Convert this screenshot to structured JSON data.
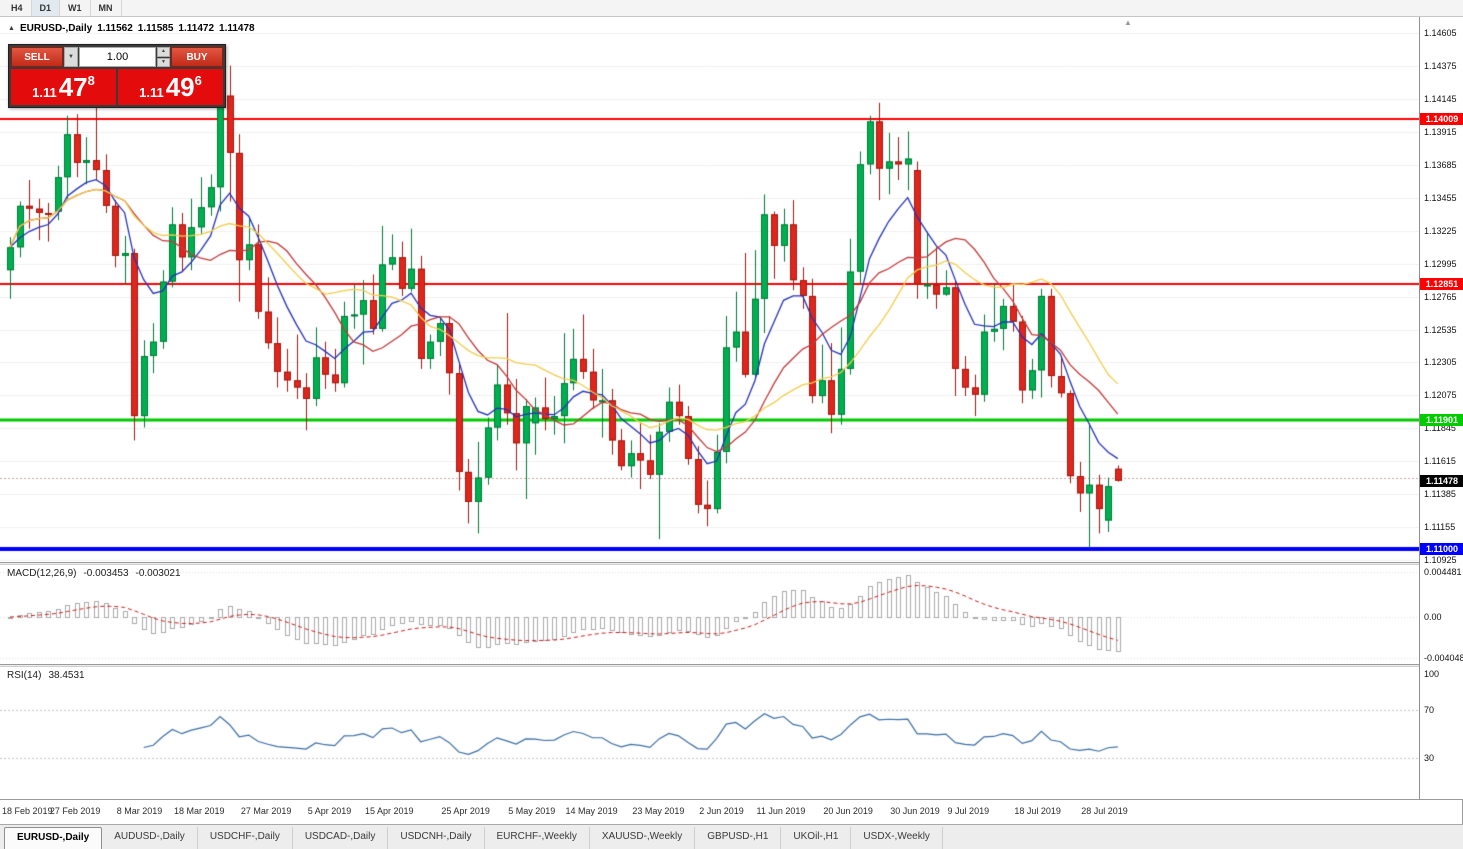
{
  "toolbar": {
    "timeframes": [
      "H4",
      "D1",
      "W1",
      "MN"
    ],
    "active_timeframe": "D1"
  },
  "chart_header": {
    "title": "EURUSD-,Daily",
    "open": "1.11562",
    "high": "1.11585",
    "low": "1.11472",
    "close": "1.11478"
  },
  "icons": {
    "collapse": "▲",
    "dropdown": "▼",
    "spin_up": "▲",
    "spin_down": "▼",
    "chart_shift": "▲"
  },
  "trade_panel": {
    "sell_label": "SELL",
    "buy_label": "BUY",
    "volume": "1.00",
    "sell_price": {
      "prefix": "1.11",
      "big": "47",
      "sup": "8"
    },
    "buy_price": {
      "prefix": "1.11",
      "big": "49",
      "sup": "6"
    }
  },
  "chart_data": {
    "type": "candlestick",
    "symbol": "EURUSD-",
    "timeframe": "Daily",
    "y_range": [
      1.1091,
      1.1472
    ],
    "y_ticks": [
      "1.14605",
      "1.14375",
      "1.14145",
      "1.13915",
      "1.13685",
      "1.13455",
      "1.13225",
      "1.12995",
      "1.12765",
      "1.12535",
      "1.12305",
      "1.12075",
      "1.11845",
      "1.11615",
      "1.11385",
      "1.11155",
      "1.10925"
    ],
    "hlines": [
      {
        "price": 1.14009,
        "label": "1.14009",
        "color": "#FF0000",
        "width": 2
      },
      {
        "price": 1.12851,
        "label": "1.12851",
        "color": "#FF0000",
        "width": 2
      },
      {
        "price": 1.11901,
        "label": "1.11901",
        "color": "#00CC00",
        "width": 3
      },
      {
        "price": 1.11,
        "label": "1.11000",
        "color": "#0000FF",
        "width": 4
      }
    ],
    "ask_line": 1.11496,
    "current_price": {
      "price": 1.11478,
      "label": "1.11478",
      "bg": "#000000"
    },
    "colors": {
      "bull": "#00B050",
      "bear": "#E0261C",
      "bull_border": "#007A38",
      "bear_border": "#9E1A12",
      "grid": "#F1F1F1"
    },
    "moving_averages": [
      {
        "name": "fast-ma",
        "type": "ema",
        "period": 8,
        "color": "#2433B9"
      },
      {
        "name": "medium-ma",
        "type": "sma",
        "period": 13,
        "color": "#C23B3B"
      },
      {
        "name": "slow-ma",
        "type": "sma",
        "period": 21,
        "color": "#F2CE4E"
      }
    ],
    "x_labels": [
      {
        "text": "18 Feb 2019",
        "index": 0
      },
      {
        "text": "27 Feb 2019",
        "index": 7
      },
      {
        "text": "8 Mar 2019",
        "index": 14
      },
      {
        "text": "18 Mar 2019",
        "index": 20
      },
      {
        "text": "27 Mar 2019",
        "index": 27
      },
      {
        "text": "5 Apr 2019",
        "index": 34
      },
      {
        "text": "15 Apr 2019",
        "index": 40
      },
      {
        "text": "25 Apr 2019",
        "index": 48
      },
      {
        "text": "5 May 2019",
        "index": 55
      },
      {
        "text": "14 May 2019",
        "index": 61
      },
      {
        "text": "23 May 2019",
        "index": 68
      },
      {
        "text": "2 Jun 2019",
        "index": 75
      },
      {
        "text": "11 Jun 2019",
        "index": 81
      },
      {
        "text": "20 Jun 2019",
        "index": 88
      },
      {
        "text": "30 Jun 2019",
        "index": 95
      },
      {
        "text": "9 Jul 2019",
        "index": 101
      },
      {
        "text": "18 Jul 2019",
        "index": 108
      },
      {
        "text": "28 Jul 2019",
        "index": 115
      }
    ],
    "candles": [
      [
        1.1295,
        1.1318,
        1.1275,
        1.1311
      ],
      [
        1.1311,
        1.1343,
        1.1304,
        1.134
      ],
      [
        1.134,
        1.1358,
        1.1324,
        1.1338
      ],
      [
        1.1338,
        1.1345,
        1.1316,
        1.1335
      ],
      [
        1.1335,
        1.1342,
        1.1315,
        1.1334
      ],
      [
        1.1336,
        1.1368,
        1.133,
        1.136
      ],
      [
        1.136,
        1.1403,
        1.1345,
        1.139
      ],
      [
        1.139,
        1.1404,
        1.136,
        1.137
      ],
      [
        1.137,
        1.1388,
        1.1355,
        1.1372
      ],
      [
        1.1372,
        1.1409,
        1.1358,
        1.1365
      ],
      [
        1.1365,
        1.1376,
        1.1335,
        1.134
      ],
      [
        1.134,
        1.1344,
        1.1297,
        1.1305
      ],
      [
        1.1305,
        1.1319,
        1.1285,
        1.1307
      ],
      [
        1.1307,
        1.131,
        1.1176,
        1.1193
      ],
      [
        1.1193,
        1.1246,
        1.1185,
        1.1235
      ],
      [
        1.1235,
        1.1258,
        1.1223,
        1.1245
      ],
      [
        1.1245,
        1.1295,
        1.124,
        1.1287
      ],
      [
        1.1287,
        1.1339,
        1.1283,
        1.1327
      ],
      [
        1.1327,
        1.1335,
        1.1294,
        1.1304
      ],
      [
        1.1304,
        1.1345,
        1.1295,
        1.1325
      ],
      [
        1.1325,
        1.136,
        1.132,
        1.1339
      ],
      [
        1.1339,
        1.1362,
        1.1333,
        1.1353
      ],
      [
        1.1353,
        1.1448,
        1.1336,
        1.1417
      ],
      [
        1.1417,
        1.1438,
        1.1343,
        1.1377
      ],
      [
        1.1377,
        1.139,
        1.1273,
        1.1302
      ],
      [
        1.1302,
        1.1331,
        1.1295,
        1.1313
      ],
      [
        1.1313,
        1.1327,
        1.1261,
        1.1266
      ],
      [
        1.1266,
        1.129,
        1.124,
        1.1244
      ],
      [
        1.1244,
        1.1262,
        1.1213,
        1.1224
      ],
      [
        1.1224,
        1.124,
        1.121,
        1.1218
      ],
      [
        1.1218,
        1.125,
        1.1205,
        1.1213
      ],
      [
        1.1213,
        1.1223,
        1.1183,
        1.1205
      ],
      [
        1.1205,
        1.1255,
        1.12,
        1.1234
      ],
      [
        1.1234,
        1.1245,
        1.1212,
        1.1222
      ],
      [
        1.1222,
        1.124,
        1.121,
        1.1216
      ],
      [
        1.1216,
        1.1273,
        1.1213,
        1.1263
      ],
      [
        1.1263,
        1.1285,
        1.1254,
        1.1264
      ],
      [
        1.1264,
        1.1288,
        1.1229,
        1.1274
      ],
      [
        1.1274,
        1.1292,
        1.125,
        1.1254
      ],
      [
        1.1254,
        1.1326,
        1.1252,
        1.1299
      ],
      [
        1.1299,
        1.132,
        1.1295,
        1.1304
      ],
      [
        1.1304,
        1.1315,
        1.1277,
        1.1282
      ],
      [
        1.1282,
        1.1324,
        1.128,
        1.1296
      ],
      [
        1.1296,
        1.1305,
        1.1226,
        1.1233
      ],
      [
        1.1233,
        1.125,
        1.1226,
        1.1245
      ],
      [
        1.1245,
        1.1262,
        1.1235,
        1.1258
      ],
      [
        1.1258,
        1.1263,
        1.1208,
        1.1223
      ],
      [
        1.1223,
        1.123,
        1.1141,
        1.1154
      ],
      [
        1.1154,
        1.1163,
        1.1118,
        1.1133
      ],
      [
        1.1133,
        1.1175,
        1.1111,
        1.115
      ],
      [
        1.115,
        1.1192,
        1.1145,
        1.1185
      ],
      [
        1.1185,
        1.1229,
        1.1176,
        1.1215
      ],
      [
        1.1215,
        1.1265,
        1.1187,
        1.1195
      ],
      [
        1.1195,
        1.1219,
        1.1155,
        1.1174
      ],
      [
        1.1174,
        1.1205,
        1.1135,
        1.12
      ],
      [
        1.1188,
        1.1206,
        1.1166,
        1.1199
      ],
      [
        1.1199,
        1.122,
        1.1183,
        1.1191
      ],
      [
        1.1191,
        1.1207,
        1.118,
        1.1193
      ],
      [
        1.1193,
        1.1251,
        1.1174,
        1.1216
      ],
      [
        1.1216,
        1.1254,
        1.1211,
        1.1233
      ],
      [
        1.1233,
        1.1264,
        1.1219,
        1.1224
      ],
      [
        1.1224,
        1.124,
        1.1198,
        1.1204
      ],
      [
        1.1204,
        1.1226,
        1.1178,
        1.1204
      ],
      [
        1.1204,
        1.1212,
        1.1166,
        1.1176
      ],
      [
        1.1176,
        1.1184,
        1.1155,
        1.1158
      ],
      [
        1.1158,
        1.1176,
        1.115,
        1.1167
      ],
      [
        1.1167,
        1.1188,
        1.1142,
        1.1162
      ],
      [
        1.1162,
        1.118,
        1.1149,
        1.1152
      ],
      [
        1.1152,
        1.1188,
        1.1107,
        1.1182
      ],
      [
        1.1182,
        1.1213,
        1.1175,
        1.1203
      ],
      [
        1.1203,
        1.1215,
        1.1187,
        1.1193
      ],
      [
        1.1193,
        1.12,
        1.1159,
        1.1163
      ],
      [
        1.1163,
        1.1172,
        1.1125,
        1.1131
      ],
      [
        1.1131,
        1.1148,
        1.1116,
        1.1128
      ],
      [
        1.1128,
        1.118,
        1.1125,
        1.1168
      ],
      [
        1.1168,
        1.1263,
        1.116,
        1.1241
      ],
      [
        1.1241,
        1.128,
        1.1231,
        1.1252
      ],
      [
        1.1252,
        1.1307,
        1.122,
        1.1222
      ],
      [
        1.1222,
        1.1309,
        1.1219,
        1.1275
      ],
      [
        1.1275,
        1.1348,
        1.1251,
        1.1334
      ],
      [
        1.1334,
        1.1336,
        1.1289,
        1.1312
      ],
      [
        1.1312,
        1.1338,
        1.1301,
        1.1327
      ],
      [
        1.1327,
        1.1344,
        1.1281,
        1.1288
      ],
      [
        1.1288,
        1.1297,
        1.1268,
        1.1277
      ],
      [
        1.1277,
        1.1289,
        1.1202,
        1.1207
      ],
      [
        1.1207,
        1.1243,
        1.1202,
        1.1218
      ],
      [
        1.1218,
        1.1244,
        1.1181,
        1.1194
      ],
      [
        1.1194,
        1.1255,
        1.1187,
        1.1226
      ],
      [
        1.1226,
        1.1317,
        1.1222,
        1.1294
      ],
      [
        1.1294,
        1.1378,
        1.1285,
        1.1369
      ],
      [
        1.1369,
        1.1403,
        1.1362,
        1.1399
      ],
      [
        1.1399,
        1.1412,
        1.1344,
        1.1366
      ],
      [
        1.1366,
        1.1391,
        1.1348,
        1.1371
      ],
      [
        1.1371,
        1.1388,
        1.1358,
        1.1369
      ],
      [
        1.1369,
        1.1392,
        1.1351,
        1.1373
      ],
      [
        1.1365,
        1.1371,
        1.1275,
        1.1285
      ],
      [
        1.1285,
        1.1322,
        1.1275,
        1.1285
      ],
      [
        1.1285,
        1.1311,
        1.1268,
        1.1278
      ],
      [
        1.1278,
        1.1295,
        1.1277,
        1.1283
      ],
      [
        1.1283,
        1.1288,
        1.1207,
        1.1226
      ],
      [
        1.1226,
        1.1235,
        1.1207,
        1.1213
      ],
      [
        1.1213,
        1.1222,
        1.1193,
        1.1208
      ],
      [
        1.1208,
        1.1264,
        1.1203,
        1.1252
      ],
      [
        1.1252,
        1.1286,
        1.1245,
        1.1254
      ],
      [
        1.1254,
        1.1275,
        1.1239,
        1.127
      ],
      [
        1.127,
        1.1285,
        1.1252,
        1.1259
      ],
      [
        1.1259,
        1.1263,
        1.1202,
        1.1211
      ],
      [
        1.1211,
        1.1233,
        1.1205,
        1.1225
      ],
      [
        1.1225,
        1.1282,
        1.1206,
        1.1277
      ],
      [
        1.1277,
        1.1282,
        1.1213,
        1.1221
      ],
      [
        1.1221,
        1.1235,
        1.1206,
        1.1209
      ],
      [
        1.1209,
        1.1211,
        1.1146,
        1.1151
      ],
      [
        1.1151,
        1.1161,
        1.1126,
        1.1139
      ],
      [
        1.1139,
        1.1188,
        1.1101,
        1.1145
      ],
      [
        1.1145,
        1.1152,
        1.1111,
        1.1128
      ],
      [
        1.112,
        1.115,
        1.1112,
        1.1144
      ],
      [
        1.11562,
        1.11585,
        1.11472,
        1.11478
      ]
    ]
  },
  "macd_panel": {
    "name": "MACD(12,26,9)",
    "value_main": "-0.003453",
    "value_signal": "-0.003021",
    "fast": 12,
    "slow": 26,
    "signal": 9,
    "axis_labels": [
      "0.004481",
      "0.00",
      "-0.004048"
    ],
    "histogram_color": "#ABABAB",
    "signal_color": "#CC1F1F"
  },
  "rsi_panel": {
    "name": "RSI(14)",
    "value": "38.4531",
    "period": 14,
    "axis_labels": [
      "100",
      "70",
      "30"
    ],
    "levels": [
      70,
      30
    ],
    "line_color": "#3A6EA5"
  },
  "tab_bar": {
    "active_index": 0,
    "tabs": [
      "EURUSD-,Daily",
      "AUDUSD-,Daily",
      "USDCHF-,Daily",
      "USDCAD-,Daily",
      "USDCNH-,Daily",
      "EURCHF-,Weekly",
      "XAUUSD-,Weekly",
      "GBPUSD-,H1",
      "UKOil-,H1",
      "USDX-,Weekly"
    ]
  }
}
